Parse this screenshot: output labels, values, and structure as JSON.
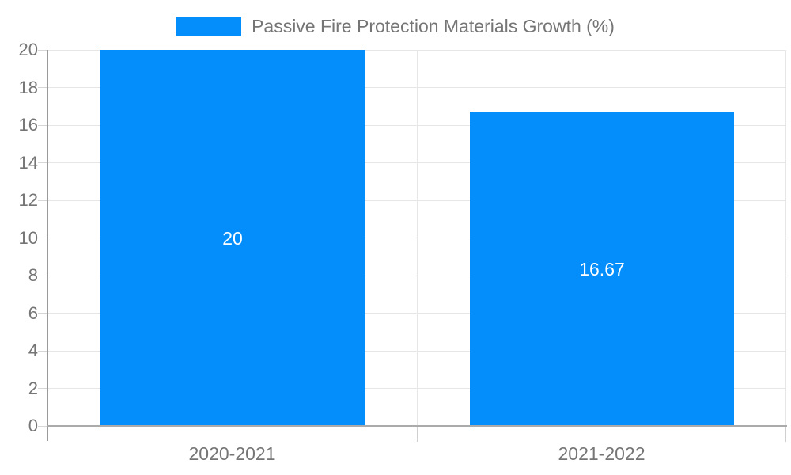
{
  "chart_data": {
    "type": "bar",
    "title": "Passive Fire Protection Materials Growth (%)",
    "categories": [
      "2020-2021",
      "2021-2022"
    ],
    "values": [
      20,
      16.67
    ],
    "bar_value_labels": [
      "20",
      "16.67"
    ],
    "xlabel": "",
    "ylabel": "",
    "ylim": [
      0,
      20
    ],
    "yticks": [
      0,
      2,
      4,
      6,
      8,
      10,
      12,
      14,
      16,
      18,
      20
    ],
    "grid": true,
    "legend_position": "top-center",
    "colors": {
      "bar": "#048efc",
      "bar_value_label_text": "#ffffff",
      "axis_text": "#757575",
      "gridline": "#e6e6e6",
      "y_axis_line": "#9a9a9a",
      "x_axis_line": "#ababab"
    }
  }
}
